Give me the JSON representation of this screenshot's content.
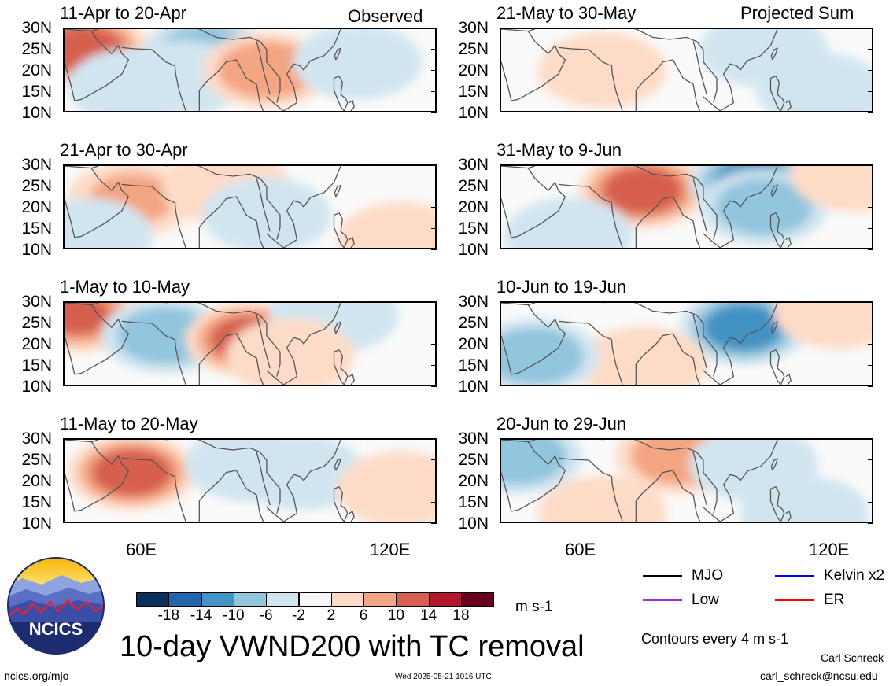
{
  "header": {
    "left_label": "Observed",
    "right_label": "Projected Sum"
  },
  "lat_labels": [
    "30N",
    "25N",
    "20N",
    "15N",
    "10N"
  ],
  "lon_labels": [
    "60E",
    "120E"
  ],
  "panels": [
    {
      "title": "11-Apr to 20-Apr",
      "column": "observed",
      "anomalies": [
        {
          "lon": 46,
          "lat": 25,
          "v": 12
        },
        {
          "lon": 82,
          "lat": 24,
          "v": -9
        },
        {
          "lon": 75,
          "lat": 18,
          "v": -6
        },
        {
          "lon": 100,
          "lat": 20,
          "v": 8
        },
        {
          "lon": 127,
          "lat": 22,
          "v": -4
        },
        {
          "lon": 60,
          "lat": 16,
          "v": -4
        }
      ]
    },
    {
      "title": "21-May to 30-May",
      "column": "projected",
      "anomalies": [
        {
          "lon": 70,
          "lat": 20,
          "v": 3
        },
        {
          "lon": 118,
          "lat": 25,
          "v": -5
        },
        {
          "lon": 135,
          "lat": 15,
          "v": -3
        }
      ]
    },
    {
      "title": "21-Apr to 30-Apr",
      "column": "observed",
      "anomalies": [
        {
          "lon": 60,
          "lat": 22,
          "v": 6
        },
        {
          "lon": 88,
          "lat": 25,
          "v": 2
        },
        {
          "lon": 100,
          "lat": 18,
          "v": -3
        },
        {
          "lon": 47,
          "lat": 13,
          "v": -3
        },
        {
          "lon": 140,
          "lat": 12,
          "v": 3
        }
      ]
    },
    {
      "title": "31-May to 9-Jun",
      "column": "projected",
      "anomalies": [
        {
          "lon": 82,
          "lat": 24,
          "v": 11
        },
        {
          "lon": 115,
          "lat": 26,
          "v": -14
        },
        {
          "lon": 118,
          "lat": 20,
          "v": -8
        },
        {
          "lon": 60,
          "lat": 13,
          "v": -4
        },
        {
          "lon": 145,
          "lat": 28,
          "v": 4
        }
      ]
    },
    {
      "title": "1-May to 10-May",
      "column": "observed",
      "anomalies": [
        {
          "lon": 44,
          "lat": 27,
          "v": 10
        },
        {
          "lon": 70,
          "lat": 22,
          "v": -10
        },
        {
          "lon": 95,
          "lat": 21,
          "v": 12
        },
        {
          "lon": 120,
          "lat": 27,
          "v": -3
        },
        {
          "lon": 107,
          "lat": 17,
          "v": 4
        }
      ]
    },
    {
      "title": "10-Jun to 19-Jun",
      "column": "projected",
      "anomalies": [
        {
          "lon": 112,
          "lat": 24,
          "v": -12
        },
        {
          "lon": 82,
          "lat": 15,
          "v": 5
        },
        {
          "lon": 50,
          "lat": 17,
          "v": -7
        },
        {
          "lon": 140,
          "lat": 28,
          "v": 5
        }
      ]
    },
    {
      "title": "11-May to 20-May",
      "column": "observed",
      "anomalies": [
        {
          "lon": 60,
          "lat": 22,
          "v": 11
        },
        {
          "lon": 95,
          "lat": 24,
          "v": -4
        },
        {
          "lon": 110,
          "lat": 22,
          "v": -3
        },
        {
          "lon": 140,
          "lat": 18,
          "v": 3
        }
      ]
    },
    {
      "title": "20-Jun to 29-Jun",
      "column": "projected",
      "anomalies": [
        {
          "lon": 45,
          "lat": 26,
          "v": -8
        },
        {
          "lon": 93,
          "lat": 26,
          "v": 9
        },
        {
          "lon": 115,
          "lat": 24,
          "v": -5
        },
        {
          "lon": 70,
          "lat": 12,
          "v": 5
        },
        {
          "lon": 130,
          "lat": 12,
          "v": -3
        }
      ]
    }
  ],
  "colorbar": {
    "colors": [
      "#0a2f5c",
      "#2166ac",
      "#4393c3",
      "#92c5de",
      "#d1e5f0",
      "#f7f7f7",
      "#fddbc7",
      "#f4a582",
      "#d6604d",
      "#b2182b",
      "#67001f"
    ],
    "labels": [
      "-18",
      "-14",
      "-10",
      "-6",
      "-2",
      "2",
      "6",
      "10",
      "14",
      "18"
    ],
    "units": "m s-1"
  },
  "legend": [
    {
      "label": "MJO",
      "color": "#000000"
    },
    {
      "label": "Kelvin x2",
      "color": "#0000ff"
    },
    {
      "label": "Low",
      "color": "#9932cc"
    },
    {
      "label": "ER",
      "color": "#ff0000"
    }
  ],
  "contour_note": "Contours every 4 m s-1",
  "main_title": "10-day VWND200 with TC removal",
  "logo_text": "NCICS",
  "footer": {
    "url": "ncics.org/mjo",
    "timestamp": "Wed 2025-05-21 1016 UTC",
    "author": "Carl Schreck",
    "email": "carl_schreck@ncsu.edu"
  }
}
